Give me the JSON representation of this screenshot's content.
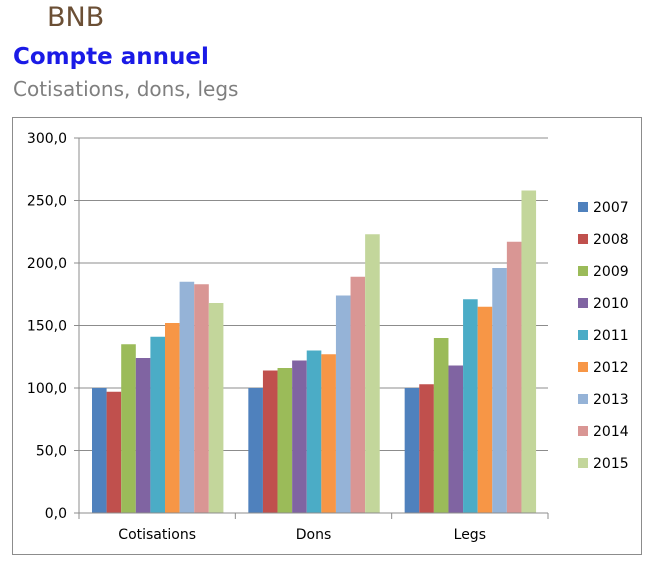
{
  "header": {
    "brand": "BNB",
    "title": "Compte annuel",
    "subtitle": "Cotisations, dons, legs"
  },
  "chart_data": {
    "type": "bar",
    "categories": [
      "Cotisations",
      "Dons",
      "Legs"
    ],
    "ylim": [
      0,
      300
    ],
    "yticks": [
      "0,0",
      "50,0",
      "100,0",
      "150,0",
      "200,0",
      "250,0",
      "300,0"
    ],
    "grid": true,
    "legend_position": "right",
    "series": [
      {
        "name": "2007",
        "color": "#4f81bd",
        "values": [
          100,
          100,
          100
        ]
      },
      {
        "name": "2008",
        "color": "#c0504d",
        "values": [
          97,
          114,
          103
        ]
      },
      {
        "name": "2009",
        "color": "#9bbb59",
        "values": [
          135,
          116,
          140
        ]
      },
      {
        "name": "2010",
        "color": "#8064a2",
        "values": [
          124,
          122,
          118
        ]
      },
      {
        "name": "2011",
        "color": "#4bacc6",
        "values": [
          141,
          130,
          171
        ]
      },
      {
        "name": "2012",
        "color": "#f79646",
        "values": [
          152,
          127,
          165
        ]
      },
      {
        "name": "2013",
        "color": "#95b3d7",
        "values": [
          185,
          174,
          196
        ]
      },
      {
        "name": "2014",
        "color": "#d99694",
        "values": [
          183,
          189,
          217
        ]
      },
      {
        "name": "2015",
        "color": "#c3d69b",
        "values": [
          168,
          223,
          258
        ]
      }
    ]
  }
}
